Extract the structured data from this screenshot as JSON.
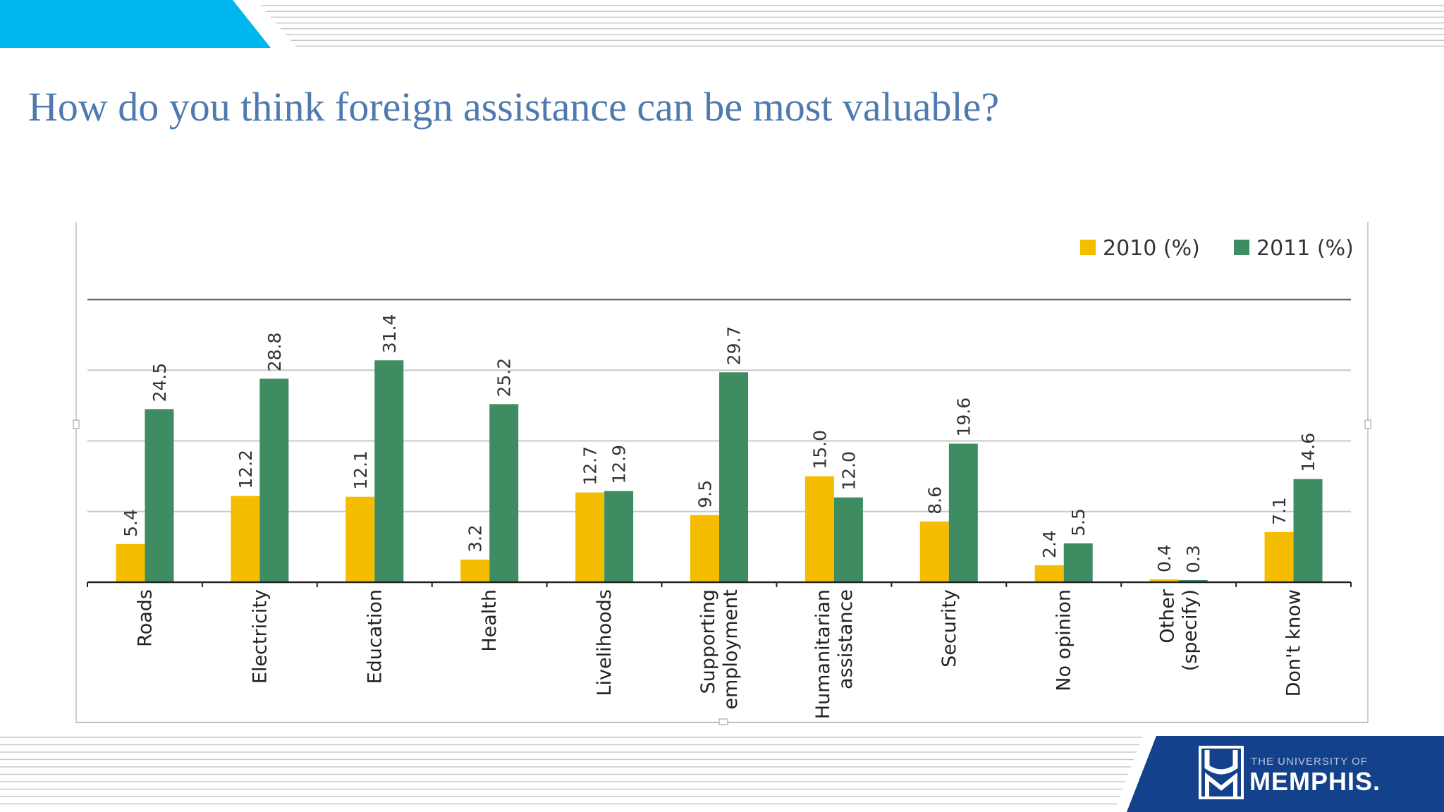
{
  "slide": {
    "title": "How do you think foreign assistance can be most valuable?"
  },
  "colors": {
    "accent_cyan": "#00b6ee",
    "title_blue": "#4f7ab0",
    "navy": "#13418b",
    "series_2010": "#f5bd00",
    "series_2011": "#3f8c63"
  },
  "logo": {
    "small": "THE UNIVERSITY OF",
    "big": "MEMPHIS."
  },
  "chart_data": {
    "type": "bar",
    "title": "",
    "categories": [
      [
        "Roads"
      ],
      [
        "Electricity"
      ],
      [
        "Education"
      ],
      [
        "Health"
      ],
      [
        "Livelihoods"
      ],
      [
        "Supporting",
        "employment"
      ],
      [
        "Humanitarian",
        "assistance"
      ],
      [
        "Security"
      ],
      [
        "No opinion"
      ],
      [
        "Other",
        "(specify)"
      ],
      [
        "Don't know"
      ]
    ],
    "series": [
      {
        "name": "2010 (%)",
        "values": [
          5.4,
          12.2,
          12.1,
          3.2,
          12.7,
          9.5,
          15.0,
          8.6,
          2.4,
          0.4,
          7.1
        ],
        "labels": [
          "5.4",
          "12.2",
          "12.1",
          "3.2",
          "12.7",
          "9.5",
          "15.0",
          "8.6",
          "2.4",
          "0.4",
          "7.1"
        ]
      },
      {
        "name": "2011 (%)",
        "values": [
          24.5,
          28.8,
          31.4,
          25.2,
          12.9,
          29.7,
          12.0,
          19.6,
          5.5,
          0.3,
          14.6
        ],
        "labels": [
          "24.5",
          "28.8",
          "31.4",
          "25.2",
          "12.9",
          "29.7",
          "12.0",
          "19.6",
          "5.5",
          "0.3",
          "14.6"
        ]
      }
    ],
    "ylim": [
      0,
      40
    ],
    "gridlines": [
      10,
      20,
      30,
      40
    ],
    "grid": true,
    "legend_position": "top-right"
  }
}
